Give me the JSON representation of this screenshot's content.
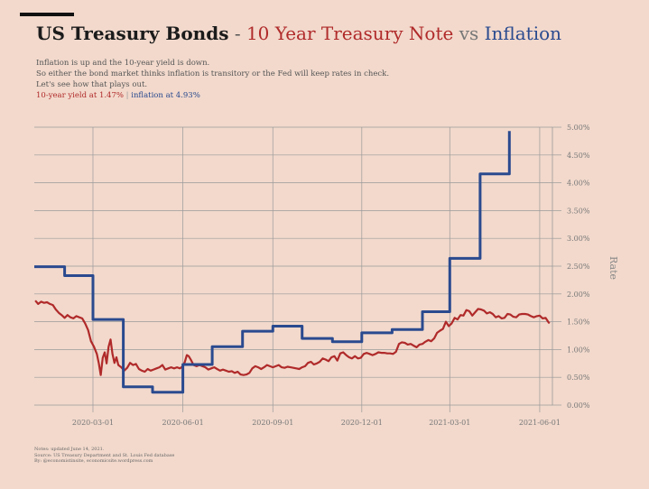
{
  "header": {
    "title_main": "US Treasury Bonds",
    "title_dash": "-",
    "title_series_red": "10 Year Treasury Note",
    "title_vs": "vs",
    "title_series_blue": "Inflation"
  },
  "subtitle_lines": [
    "Inflation is up and the 10-year yield is down.",
    "So either the bond market thinks inflation is transitory or the Fed will keep rates in check.",
    "Let's see how that plays out."
  ],
  "status": {
    "yield_text": "10-year yield at 1.47%",
    "separator": "|",
    "inflation_text": "inflation at 4.93%"
  },
  "notes": [
    "Notes: updated June 14, 2021.",
    "Source: US Treasury Department and St. Louis Fed database",
    "By: @economistinsite, economicsite.wordpress.com"
  ],
  "colors": {
    "background": "#f2d9cc",
    "red_series": "#b02a2a",
    "blue_series": "#2a4a8f",
    "grid": "#9a9a9a",
    "axis_text": "#777777"
  },
  "chart_data": {
    "type": "line",
    "x_axis_type": "date",
    "xlim": [
      "2020-01-01",
      "2021-06-14"
    ],
    "ylim": [
      0,
      5
    ],
    "xlabel": "",
    "ylabel": "Rate",
    "y_ticks": [
      {
        "value": 0.0,
        "label": "0.00%"
      },
      {
        "value": 0.5,
        "label": "0.50%"
      },
      {
        "value": 1.0,
        "label": "1.00%"
      },
      {
        "value": 1.5,
        "label": "1.50%"
      },
      {
        "value": 2.0,
        "label": "2.00%"
      },
      {
        "value": 2.5,
        "label": "2.50%"
      },
      {
        "value": 3.0,
        "label": "3.00%"
      },
      {
        "value": 3.5,
        "label": "3.50%"
      },
      {
        "value": 4.0,
        "label": "4.00%"
      },
      {
        "value": 4.5,
        "label": "4.50%"
      },
      {
        "value": 5.0,
        "label": "5.00%"
      }
    ],
    "x_ticks": [
      {
        "value": "2020-03-01",
        "label": "2020-03-01"
      },
      {
        "value": "2020-06-01",
        "label": "2020-06-01"
      },
      {
        "value": "2020-09-01",
        "label": "2020-09-01"
      },
      {
        "value": "2020-12-01",
        "label": "2020-12-01"
      },
      {
        "value": "2021-03-01",
        "label": "2021-03-01"
      },
      {
        "value": "2021-06-01",
        "label": "2021-06-01"
      }
    ],
    "grid": true,
    "legend": "none",
    "series": [
      {
        "key": "yield",
        "color": "#b02a2a",
        "step": false,
        "points": [
          [
            "2020-01-02",
            1.88
          ],
          [
            "2020-01-05",
            1.82
          ],
          [
            "2020-01-08",
            1.86
          ],
          [
            "2020-01-11",
            1.84
          ],
          [
            "2020-01-14",
            1.85
          ],
          [
            "2020-01-17",
            1.82
          ],
          [
            "2020-01-20",
            1.8
          ],
          [
            "2020-01-23",
            1.72
          ],
          [
            "2020-01-26",
            1.66
          ],
          [
            "2020-01-29",
            1.62
          ],
          [
            "2020-02-01",
            1.57
          ],
          [
            "2020-02-04",
            1.62
          ],
          [
            "2020-02-07",
            1.58
          ],
          [
            "2020-02-10",
            1.56
          ],
          [
            "2020-02-13",
            1.6
          ],
          [
            "2020-02-16",
            1.58
          ],
          [
            "2020-02-19",
            1.56
          ],
          [
            "2020-02-22",
            1.47
          ],
          [
            "2020-02-25",
            1.35
          ],
          [
            "2020-02-28",
            1.15
          ],
          [
            "2020-03-02",
            1.05
          ],
          [
            "2020-03-05",
            0.92
          ],
          [
            "2020-03-07",
            0.75
          ],
          [
            "2020-03-09",
            0.54
          ],
          [
            "2020-03-11",
            0.85
          ],
          [
            "2020-03-13",
            0.95
          ],
          [
            "2020-03-15",
            0.75
          ],
          [
            "2020-03-17",
            1.05
          ],
          [
            "2020-03-19",
            1.18
          ],
          [
            "2020-03-21",
            0.92
          ],
          [
            "2020-03-23",
            0.76
          ],
          [
            "2020-03-25",
            0.86
          ],
          [
            "2020-03-27",
            0.72
          ],
          [
            "2020-03-30",
            0.68
          ],
          [
            "2020-04-02",
            0.62
          ],
          [
            "2020-04-05",
            0.67
          ],
          [
            "2020-04-08",
            0.76
          ],
          [
            "2020-04-11",
            0.72
          ],
          [
            "2020-04-14",
            0.74
          ],
          [
            "2020-04-17",
            0.65
          ],
          [
            "2020-04-20",
            0.62
          ],
          [
            "2020-04-23",
            0.6
          ],
          [
            "2020-04-26",
            0.65
          ],
          [
            "2020-04-29",
            0.62
          ],
          [
            "2020-05-02",
            0.64
          ],
          [
            "2020-05-05",
            0.66
          ],
          [
            "2020-05-08",
            0.68
          ],
          [
            "2020-05-11",
            0.72
          ],
          [
            "2020-05-14",
            0.64
          ],
          [
            "2020-05-17",
            0.66
          ],
          [
            "2020-05-20",
            0.68
          ],
          [
            "2020-05-23",
            0.66
          ],
          [
            "2020-05-26",
            0.68
          ],
          [
            "2020-05-29",
            0.66
          ],
          [
            "2020-06-01",
            0.7
          ],
          [
            "2020-06-03",
            0.78
          ],
          [
            "2020-06-05",
            0.9
          ],
          [
            "2020-06-07",
            0.88
          ],
          [
            "2020-06-09",
            0.82
          ],
          [
            "2020-06-12",
            0.72
          ],
          [
            "2020-06-15",
            0.7
          ],
          [
            "2020-06-18",
            0.72
          ],
          [
            "2020-06-21",
            0.7
          ],
          [
            "2020-06-24",
            0.68
          ],
          [
            "2020-06-27",
            0.64
          ],
          [
            "2020-06-30",
            0.66
          ],
          [
            "2020-07-03",
            0.68
          ],
          [
            "2020-07-06",
            0.65
          ],
          [
            "2020-07-09",
            0.62
          ],
          [
            "2020-07-12",
            0.64
          ],
          [
            "2020-07-15",
            0.62
          ],
          [
            "2020-07-18",
            0.6
          ],
          [
            "2020-07-21",
            0.61
          ],
          [
            "2020-07-24",
            0.58
          ],
          [
            "2020-07-27",
            0.6
          ],
          [
            "2020-07-30",
            0.55
          ],
          [
            "2020-08-02",
            0.54
          ],
          [
            "2020-08-05",
            0.55
          ],
          [
            "2020-08-08",
            0.58
          ],
          [
            "2020-08-11",
            0.66
          ],
          [
            "2020-08-14",
            0.7
          ],
          [
            "2020-08-17",
            0.68
          ],
          [
            "2020-08-20",
            0.65
          ],
          [
            "2020-08-23",
            0.68
          ],
          [
            "2020-08-26",
            0.72
          ],
          [
            "2020-08-29",
            0.7
          ],
          [
            "2020-09-01",
            0.68
          ],
          [
            "2020-09-04",
            0.7
          ],
          [
            "2020-09-07",
            0.72
          ],
          [
            "2020-09-10",
            0.68
          ],
          [
            "2020-09-13",
            0.67
          ],
          [
            "2020-09-16",
            0.69
          ],
          [
            "2020-09-19",
            0.68
          ],
          [
            "2020-09-22",
            0.67
          ],
          [
            "2020-09-25",
            0.66
          ],
          [
            "2020-09-28",
            0.65
          ],
          [
            "2020-10-01",
            0.68
          ],
          [
            "2020-10-04",
            0.7
          ],
          [
            "2020-10-07",
            0.76
          ],
          [
            "2020-10-10",
            0.78
          ],
          [
            "2020-10-13",
            0.73
          ],
          [
            "2020-10-16",
            0.75
          ],
          [
            "2020-10-19",
            0.78
          ],
          [
            "2020-10-22",
            0.84
          ],
          [
            "2020-10-25",
            0.82
          ],
          [
            "2020-10-28",
            0.79
          ],
          [
            "2020-10-31",
            0.86
          ],
          [
            "2020-11-03",
            0.88
          ],
          [
            "2020-11-06",
            0.8
          ],
          [
            "2020-11-09",
            0.93
          ],
          [
            "2020-11-12",
            0.95
          ],
          [
            "2020-11-15",
            0.9
          ],
          [
            "2020-11-18",
            0.86
          ],
          [
            "2020-11-21",
            0.84
          ],
          [
            "2020-11-24",
            0.88
          ],
          [
            "2020-11-27",
            0.84
          ],
          [
            "2020-11-30",
            0.85
          ],
          [
            "2020-12-03",
            0.92
          ],
          [
            "2020-12-06",
            0.94
          ],
          [
            "2020-12-09",
            0.92
          ],
          [
            "2020-12-12",
            0.9
          ],
          [
            "2020-12-15",
            0.92
          ],
          [
            "2020-12-18",
            0.95
          ],
          [
            "2020-12-21",
            0.94
          ],
          [
            "2020-12-24",
            0.94
          ],
          [
            "2020-12-27",
            0.93
          ],
          [
            "2020-12-30",
            0.93
          ],
          [
            "2021-01-02",
            0.92
          ],
          [
            "2021-01-05",
            0.96
          ],
          [
            "2021-01-08",
            1.1
          ],
          [
            "2021-01-11",
            1.13
          ],
          [
            "2021-01-14",
            1.12
          ],
          [
            "2021-01-17",
            1.09
          ],
          [
            "2021-01-20",
            1.1
          ],
          [
            "2021-01-23",
            1.07
          ],
          [
            "2021-01-26",
            1.04
          ],
          [
            "2021-01-29",
            1.09
          ],
          [
            "2021-02-01",
            1.1
          ],
          [
            "2021-02-04",
            1.14
          ],
          [
            "2021-02-07",
            1.17
          ],
          [
            "2021-02-10",
            1.15
          ],
          [
            "2021-02-13",
            1.2
          ],
          [
            "2021-02-16",
            1.3
          ],
          [
            "2021-02-19",
            1.34
          ],
          [
            "2021-02-22",
            1.37
          ],
          [
            "2021-02-25",
            1.5
          ],
          [
            "2021-02-28",
            1.42
          ],
          [
            "2021-03-03",
            1.47
          ],
          [
            "2021-03-06",
            1.57
          ],
          [
            "2021-03-09",
            1.54
          ],
          [
            "2021-03-12",
            1.62
          ],
          [
            "2021-03-15",
            1.61
          ],
          [
            "2021-03-18",
            1.71
          ],
          [
            "2021-03-21",
            1.69
          ],
          [
            "2021-03-24",
            1.61
          ],
          [
            "2021-03-27",
            1.67
          ],
          [
            "2021-03-30",
            1.73
          ],
          [
            "2021-04-02",
            1.72
          ],
          [
            "2021-04-05",
            1.7
          ],
          [
            "2021-04-08",
            1.65
          ],
          [
            "2021-04-11",
            1.67
          ],
          [
            "2021-04-14",
            1.64
          ],
          [
            "2021-04-17",
            1.58
          ],
          [
            "2021-04-20",
            1.6
          ],
          [
            "2021-04-23",
            1.56
          ],
          [
            "2021-04-26",
            1.57
          ],
          [
            "2021-04-29",
            1.64
          ],
          [
            "2021-05-02",
            1.63
          ],
          [
            "2021-05-05",
            1.59
          ],
          [
            "2021-05-08",
            1.58
          ],
          [
            "2021-05-11",
            1.63
          ],
          [
            "2021-05-14",
            1.64
          ],
          [
            "2021-05-17",
            1.64
          ],
          [
            "2021-05-20",
            1.63
          ],
          [
            "2021-05-23",
            1.6
          ],
          [
            "2021-05-26",
            1.58
          ],
          [
            "2021-05-29",
            1.6
          ],
          [
            "2021-06-01",
            1.61
          ],
          [
            "2021-06-04",
            1.56
          ],
          [
            "2021-06-07",
            1.57
          ],
          [
            "2021-06-10",
            1.49
          ],
          [
            "2021-06-11",
            1.47
          ]
        ]
      },
      {
        "key": "inflation",
        "color": "#2a4a8f",
        "step": true,
        "points": [
          [
            "2020-01-01",
            2.49
          ],
          [
            "2020-02-01",
            2.33
          ],
          [
            "2020-03-01",
            1.54
          ],
          [
            "2020-04-01",
            0.33
          ],
          [
            "2020-05-01",
            0.23
          ],
          [
            "2020-06-01",
            0.73
          ],
          [
            "2020-07-01",
            1.05
          ],
          [
            "2020-08-01",
            1.33
          ],
          [
            "2020-09-01",
            1.42
          ],
          [
            "2020-10-01",
            1.2
          ],
          [
            "2020-11-01",
            1.14
          ],
          [
            "2020-12-01",
            1.3
          ],
          [
            "2021-01-01",
            1.36
          ],
          [
            "2021-02-01",
            1.68
          ],
          [
            "2021-03-01",
            2.64
          ],
          [
            "2021-04-01",
            4.16
          ],
          [
            "2021-05-01",
            4.93
          ]
        ],
        "end": "2021-05-01"
      }
    ]
  }
}
